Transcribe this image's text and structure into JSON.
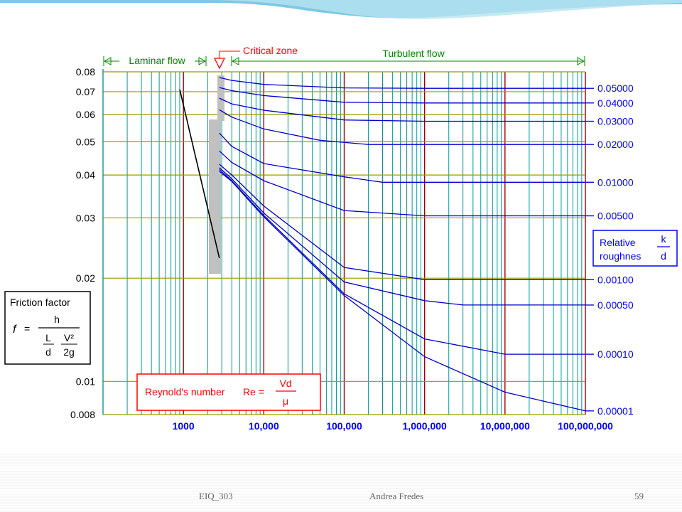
{
  "footer": {
    "course": "EIQ_303",
    "author": "Andrea Fredes",
    "page": "59"
  },
  "colors": {
    "grid_teal": "#009999",
    "grid_red": "#990000",
    "grid_olive": "#999900",
    "curve_blue": "#0000cc",
    "label_blue": "#0000ff",
    "laminar_green": "#008800",
    "critical_red": "#ff0000",
    "banner": "#7ec8e3"
  },
  "chart_data": {
    "type": "line",
    "title": "",
    "xscale": "log",
    "yscale": "log",
    "xlim": [
      100,
      100000000
    ],
    "ylim": [
      0.008,
      0.08
    ],
    "x_tick_labels": [
      "1000",
      "10,000",
      "100,000",
      "1,000,000",
      "10,000,000",
      "100,000,000"
    ],
    "x_tick_values": [
      1000,
      10000,
      100000,
      1000000,
      10000000,
      100000000
    ],
    "y_tick_labels": [
      "0.08",
      "0.07",
      "0.06",
      "0.05",
      "0.04",
      "0.03",
      "0.02",
      "0.01",
      "0.008"
    ],
    "y_tick_values": [
      0.08,
      0.07,
      0.06,
      0.05,
      0.04,
      0.03,
      0.02,
      0.01,
      0.008
    ],
    "regions": {
      "laminar": "Laminar flow",
      "critical": "Critical zone",
      "turbulent": "Turbulent flow"
    },
    "critical_zone_re": [
      2000,
      4000
    ],
    "friction_box": {
      "title": "Friction factor",
      "f": "f",
      "eq": "=",
      "h": "h",
      "L": "L",
      "d": "d",
      "V2": "V²",
      "twog": "2g"
    },
    "reynolds_box": {
      "label": "Reynold's number",
      "re": "Re =",
      "vd": "Vd",
      "mu": "μ"
    },
    "roughness_box": {
      "line1": "Relative",
      "line2": "roughnes",
      "k": "k",
      "d": "d"
    },
    "laminar_line": {
      "re": [
        900,
        2800
      ],
      "f": [
        0.0711,
        0.0229
      ]
    },
    "series": [
      {
        "name": "0.05000",
        "roughness": 0.05,
        "re": [
          2800,
          4000,
          10000,
          100000,
          1000000,
          100000000
        ],
        "f": [
          0.077,
          0.0755,
          0.0735,
          0.0718,
          0.0716,
          0.0716
        ]
      },
      {
        "name": "0.04000",
        "roughness": 0.04,
        "re": [
          2800,
          4000,
          10000,
          100000,
          1000000,
          100000000
        ],
        "f": [
          0.072,
          0.0705,
          0.0682,
          0.0652,
          0.0649,
          0.0649
        ]
      },
      {
        "name": "0.03000",
        "roughness": 0.03,
        "re": [
          2800,
          4000,
          10000,
          100000,
          1000000,
          100000000
        ],
        "f": [
          0.067,
          0.0645,
          0.0618,
          0.0579,
          0.0574,
          0.0574
        ]
      },
      {
        "name": "0.02000",
        "roughness": 0.02,
        "re": [
          2800,
          4000,
          10000,
          50000,
          200000,
          100000000
        ],
        "f": [
          0.062,
          0.059,
          0.0545,
          0.0505,
          0.0491,
          0.0491
        ]
      },
      {
        "name": "0.01000",
        "roughness": 0.01,
        "re": [
          2800,
          4000,
          10000,
          100000,
          300000,
          100000000
        ],
        "f": [
          0.053,
          0.0485,
          0.0432,
          0.0395,
          0.0381,
          0.0381
        ]
      },
      {
        "name": "0.00500",
        "roughness": 0.005,
        "re": [
          2800,
          4000,
          10000,
          100000,
          1000000,
          100000000
        ],
        "f": [
          0.047,
          0.0435,
          0.0385,
          0.0315,
          0.0304,
          0.0304
        ]
      },
      {
        "name": "0.00100",
        "roughness": 0.001,
        "re": [
          2800,
          4000,
          10000,
          100000,
          1000000,
          100000000
        ],
        "f": [
          0.043,
          0.04,
          0.0325,
          0.0215,
          0.0198,
          0.0198
        ]
      },
      {
        "name": "0.00050",
        "roughness": 0.0005,
        "re": [
          2800,
          4000,
          10000,
          100000,
          1000000,
          3000000,
          100000000
        ],
        "f": [
          0.042,
          0.039,
          0.031,
          0.0195,
          0.0172,
          0.0167,
          0.0167
        ]
      },
      {
        "name": "0.00010",
        "roughness": 0.0001,
        "re": [
          2800,
          4000,
          10000,
          100000,
          1000000,
          10000000,
          100000000
        ],
        "f": [
          0.0415,
          0.0385,
          0.0305,
          0.018,
          0.0133,
          0.012,
          0.012
        ]
      },
      {
        "name": "0.00001",
        "roughness": 1e-05,
        "re": [
          2800,
          4000,
          10000,
          100000,
          1000000,
          10000000,
          100000000
        ],
        "f": [
          0.041,
          0.0383,
          0.0302,
          0.0178,
          0.0118,
          0.0093,
          0.0082
        ]
      }
    ]
  }
}
